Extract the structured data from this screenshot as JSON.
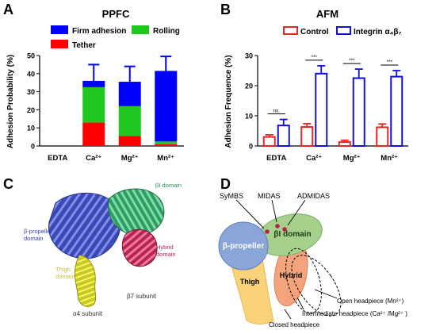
{
  "panels": {
    "a": "A",
    "b": "B",
    "c": "C",
    "d": "D"
  },
  "chart_data": [
    {
      "type": "bar",
      "stacked": true,
      "title": "PPFC",
      "ylabel": "Adhesion Probability (%)",
      "xlabel": "",
      "ylim": [
        0,
        50
      ],
      "yticks": [
        "0",
        "10",
        "20",
        "30",
        "40",
        "50"
      ],
      "categories": [
        "EDTA",
        "Ca²⁺",
        "Mg²⁺",
        "Mn²⁺"
      ],
      "series": [
        {
          "name": "Tether",
          "color": "#ff0000",
          "values": [
            0,
            13,
            5.5,
            1
          ]
        },
        {
          "name": "Rolling",
          "color": "#1fc81f",
          "values": [
            0,
            19.5,
            16.5,
            1.5
          ]
        },
        {
          "name": "Firm adhesion",
          "color": "#0000ff",
          "values": [
            0,
            3.5,
            13.5,
            39
          ]
        }
      ],
      "error": [
        0,
        9,
        8.5,
        8
      ],
      "legend": [
        "Firm adhesion",
        "Rolling",
        "Tether"
      ],
      "legend_placement": "top"
    },
    {
      "type": "bar",
      "title": "AFM",
      "ylabel": "Adhesion Frequence (%)",
      "xlabel": "",
      "ylim": [
        0,
        30
      ],
      "yticks": [
        "0",
        "10",
        "20",
        "30"
      ],
      "categories": [
        "EDTA",
        "Ca²⁺",
        "Mg²⁺",
        "Mn²⁺"
      ],
      "series": [
        {
          "name": "Control",
          "color": "#e8251f",
          "values": [
            3,
            6.3,
            1.3,
            6.2
          ],
          "error": [
            0.7,
            1.1,
            0.6,
            1.1
          ]
        },
        {
          "name": "Integrin α₄β₇",
          "color": "#1010dd",
          "values": [
            6.8,
            24,
            22.5,
            23
          ],
          "error": [
            2,
            2.6,
            3,
            2
          ]
        }
      ],
      "significance": [
        "ns.",
        "***",
        "***",
        "***"
      ],
      "legend_placement": "top"
    }
  ],
  "panel_c": {
    "labels": {
      "propeller": "β-propeller\ndomain",
      "bi": "βI domain",
      "hybrid": "Hybrid\ndomain",
      "thigh": "Thigh\ndomain",
      "b7": "β7 subunit",
      "a4": "α4 subunit"
    }
  },
  "panel_d": {
    "labels": {
      "symbs": "SyMBS",
      "midas": "MIDAS",
      "admidas": "ADMIDAS",
      "propeller": "β-propeller",
      "bi": "βI domain",
      "hybrid": "Hybrid",
      "thigh": "Thigh",
      "open": "Open headpiece (Mn²⁺)",
      "intermediate": "Intermediate headpiece (Ca²⁺ /Mg²⁺ )",
      "closed": "Closed headpiece"
    },
    "colors": {
      "propeller": "#8aa6d8",
      "bi": "#a8d08d",
      "hybrid": "#f4a47c",
      "thigh": "#fad27a",
      "metal": "#b0234a"
    }
  }
}
